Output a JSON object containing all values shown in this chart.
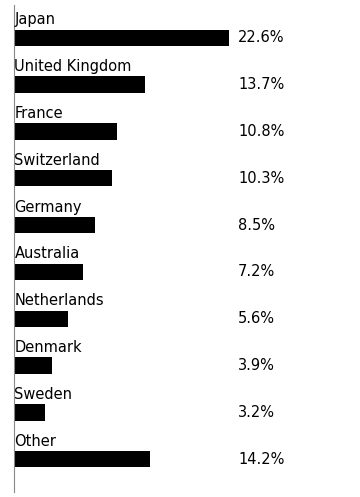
{
  "categories": [
    "Japan",
    "United Kingdom",
    "France",
    "Switzerland",
    "Germany",
    "Australia",
    "Netherlands",
    "Denmark",
    "Sweden",
    "Other"
  ],
  "values": [
    22.6,
    13.7,
    10.8,
    10.3,
    8.5,
    7.2,
    5.6,
    3.9,
    3.2,
    14.2
  ],
  "labels": [
    "22.6%",
    "13.7%",
    "10.8%",
    "10.3%",
    "8.5%",
    "7.2%",
    "5.6%",
    "3.9%",
    "3.2%",
    "14.2%"
  ],
  "bar_color": "#000000",
  "background_color": "#ffffff",
  "xlim": [
    0,
    28
  ],
  "bar_height": 0.35,
  "label_fontsize": 10.5,
  "category_fontsize": 10.5,
  "fig_width": 3.6,
  "fig_height": 4.97,
  "dpi": 100
}
